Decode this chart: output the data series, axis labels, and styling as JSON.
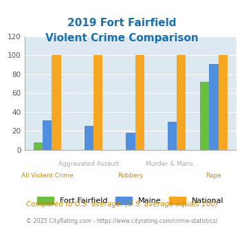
{
  "title_line1": "2019 Fort Fairfield",
  "title_line2": "Violent Crime Comparison",
  "top_labels": [
    "",
    "Aggravated Assault",
    "",
    "Murder & Mans...",
    ""
  ],
  "bottom_labels": [
    "All Violent Crime",
    "",
    "Robbery",
    "",
    "Rape"
  ],
  "fort_fairfield": [
    8,
    0,
    0,
    0,
    72
  ],
  "maine": [
    31,
    25,
    18,
    30,
    91
  ],
  "national": [
    100,
    100,
    100,
    100,
    100
  ],
  "bar_colors": {
    "fort_fairfield": "#6abf40",
    "maine": "#4f8fde",
    "national": "#f5a623"
  },
  "ylim": [
    0,
    120
  ],
  "yticks": [
    0,
    20,
    40,
    60,
    80,
    100,
    120
  ],
  "plot_bg": "#dce9f0",
  "title_color": "#1a6faf",
  "top_label_color": "#aaaaaa",
  "bottom_label_color": "#cc8800",
  "footer_text": "Compared to U.S. average. (U.S. average equals 100)",
  "credit_text": "© 2025 CityRating.com - https://www.cityrating.com/crime-statistics/",
  "legend_labels": [
    "Fort Fairfield",
    "Maine",
    "National"
  ],
  "bar_width": 0.22
}
